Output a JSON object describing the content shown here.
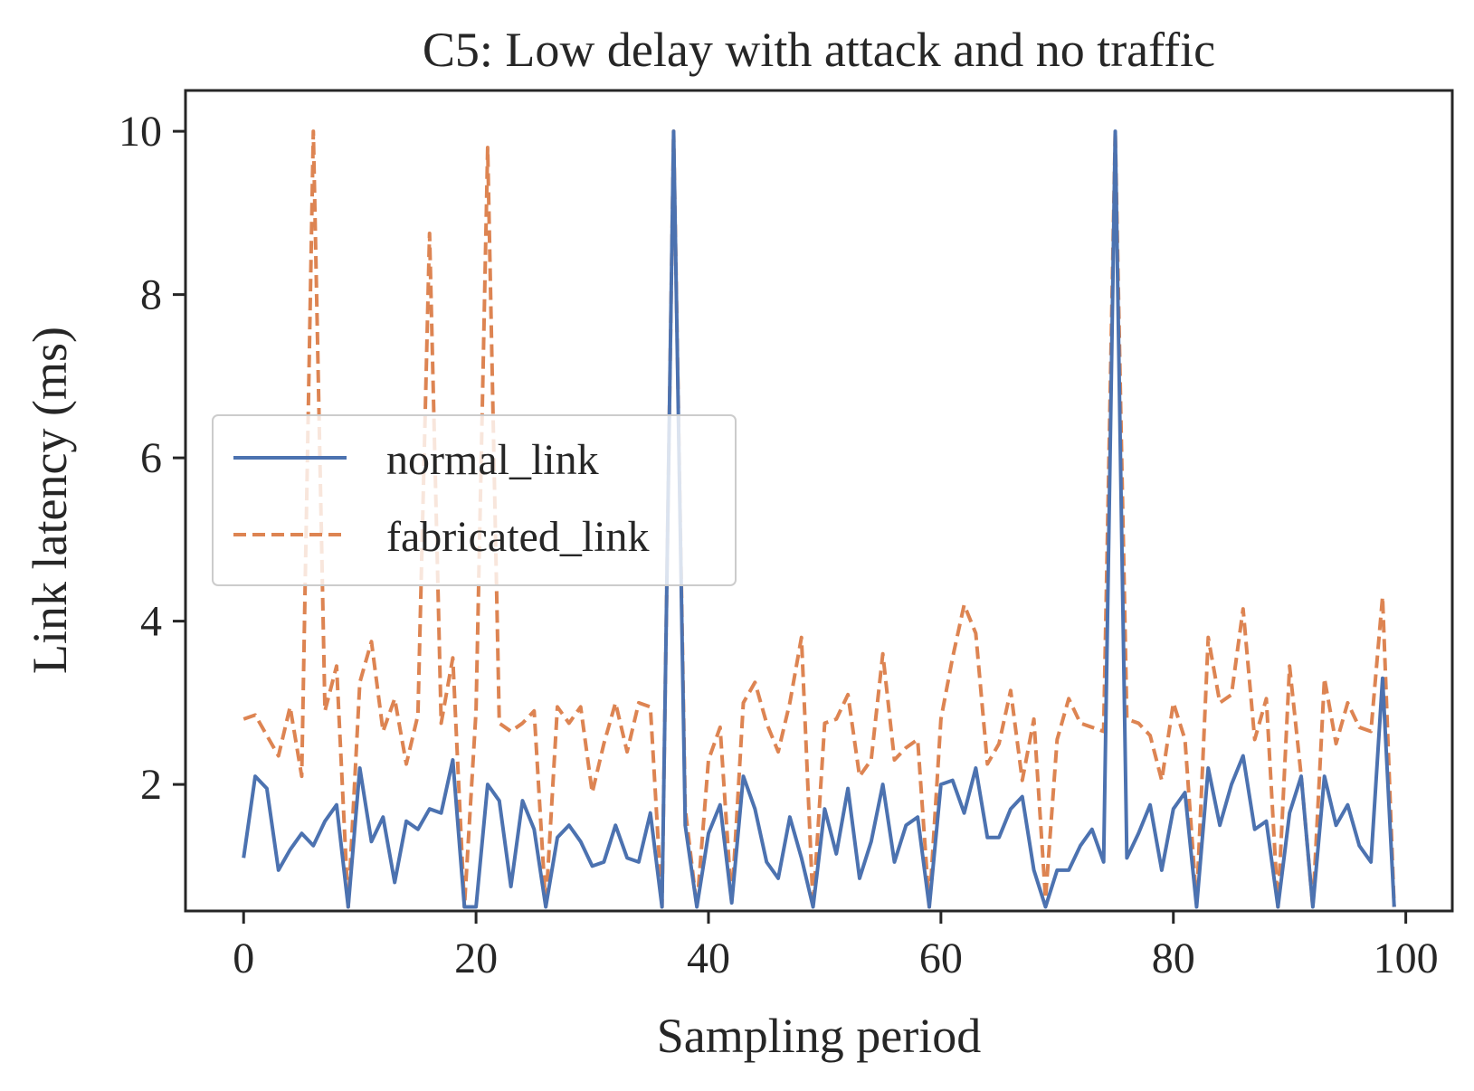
{
  "chart_data": {
    "type": "line",
    "title": "C5: Low delay with attack and no traffic",
    "xlabel": "Sampling period",
    "ylabel": "Link latency (ms)",
    "xlim": [
      -5,
      104
    ],
    "ylim": [
      0.45,
      10.5
    ],
    "xticks": [
      0,
      20,
      40,
      60,
      80,
      100
    ],
    "yticks": [
      2,
      4,
      6,
      8,
      10
    ],
    "grid": false,
    "legend_position": "center-left",
    "series": [
      {
        "name": "normal_link",
        "color": "#4c72b0",
        "dash": "solid",
        "values": [
          1.1,
          2.1,
          1.95,
          0.95,
          1.2,
          1.4,
          1.25,
          1.55,
          1.75,
          0.5,
          2.2,
          1.3,
          1.6,
          0.8,
          1.55,
          1.45,
          1.7,
          1.65,
          2.3,
          0.5,
          0.5,
          2.0,
          1.8,
          0.75,
          1.8,
          1.45,
          0.5,
          1.35,
          1.5,
          1.3,
          1.0,
          1.05,
          1.5,
          1.1,
          1.05,
          1.65,
          0.5,
          10.0,
          1.5,
          0.5,
          1.4,
          1.75,
          0.55,
          2.1,
          1.7,
          1.05,
          0.85,
          1.6,
          1.1,
          0.5,
          1.7,
          1.15,
          1.95,
          0.85,
          1.3,
          2.0,
          1.05,
          1.5,
          1.6,
          0.5,
          2.0,
          2.05,
          1.65,
          2.2,
          1.35,
          1.35,
          1.7,
          1.85,
          0.95,
          0.5,
          0.95,
          0.95,
          1.25,
          1.45,
          1.05,
          10.0,
          1.1,
          1.4,
          1.75,
          0.95,
          1.7,
          1.9,
          0.5,
          2.2,
          1.5,
          2.0,
          2.35,
          1.45,
          1.55,
          0.5,
          1.65,
          2.1,
          0.5,
          2.1,
          1.5,
          1.75,
          1.25,
          1.05,
          3.3,
          0.5
        ]
      },
      {
        "name": "fabricated_link",
        "color": "#dd8452",
        "dash": "dashed",
        "values": [
          2.8,
          2.85,
          2.6,
          2.35,
          2.95,
          2.1,
          10.0,
          2.9,
          3.45,
          0.5,
          3.25,
          3.75,
          2.65,
          3.05,
          2.25,
          2.85,
          8.75,
          2.75,
          3.55,
          0.5,
          2.9,
          9.8,
          2.75,
          2.65,
          2.75,
          2.9,
          0.5,
          2.95,
          2.75,
          2.95,
          1.9,
          2.5,
          3.0,
          2.4,
          3.0,
          2.95,
          0.5,
          10.0,
          1.7,
          0.5,
          2.3,
          2.7,
          0.55,
          3.0,
          3.25,
          2.75,
          2.4,
          3.0,
          3.8,
          0.5,
          2.75,
          2.8,
          3.1,
          2.1,
          2.3,
          3.6,
          2.3,
          2.45,
          2.55,
          0.5,
          2.8,
          3.55,
          4.2,
          3.85,
          2.25,
          2.5,
          3.15,
          2.05,
          2.8,
          0.6,
          2.55,
          3.05,
          2.75,
          2.7,
          2.65,
          10.0,
          2.8,
          2.75,
          2.6,
          2.05,
          3.0,
          2.55,
          0.55,
          3.8,
          3.0,
          3.1,
          4.15,
          2.55,
          3.05,
          0.5,
          3.45,
          2.1,
          0.5,
          3.3,
          2.5,
          3.0,
          2.7,
          2.65,
          4.3,
          0.5
        ]
      }
    ]
  }
}
